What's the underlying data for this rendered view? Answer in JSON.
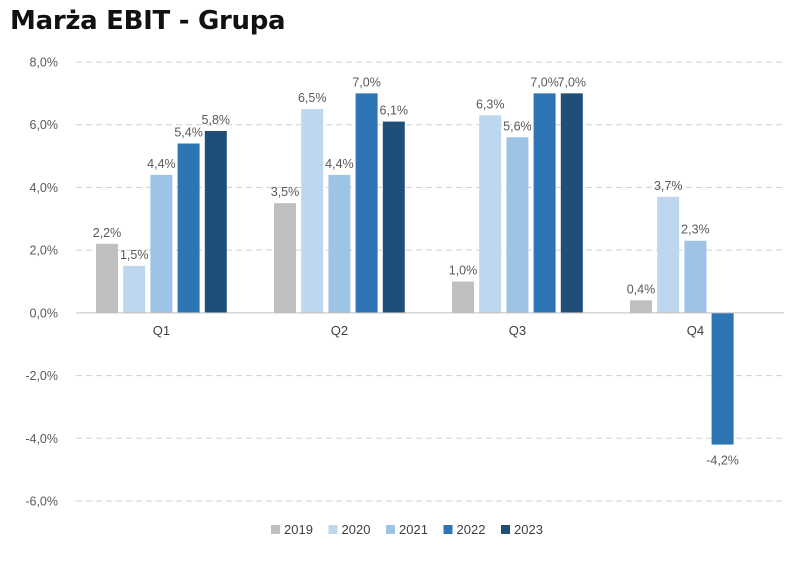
{
  "title": "Marża EBIT - Grupa",
  "chart_data": {
    "type": "bar",
    "title": "Marża EBIT - Grupa",
    "xlabel": "",
    "ylabel": "",
    "categories": [
      "Q1",
      "Q2",
      "Q3",
      "Q4"
    ],
    "ylim": [
      -6,
      8
    ],
    "yticks": [
      8,
      6,
      4,
      2,
      0,
      -2,
      -4,
      -6
    ],
    "ytick_labels": [
      "8,0%",
      "6,0%",
      "4,0%",
      "2,0%",
      "0,0%",
      "-2,0%",
      "-4,0%",
      "-6,0%"
    ],
    "grid": true,
    "legend_position": "bottom",
    "series": [
      {
        "name": "2019",
        "color": "#bfbfbf",
        "values": [
          2.2,
          3.5,
          1.0,
          0.4
        ],
        "labels": [
          "2,2%",
          "3,5%",
          "1,0%",
          "0,4%"
        ]
      },
      {
        "name": "2020",
        "color": "#bdd7ee",
        "values": [
          1.5,
          6.5,
          6.3,
          3.7
        ],
        "labels": [
          "1,5%",
          "6,5%",
          "6,3%",
          "3,7%"
        ]
      },
      {
        "name": "2021",
        "color": "#9dc3e6",
        "values": [
          4.4,
          4.4,
          5.6,
          2.3
        ],
        "labels": [
          "4,4%",
          "4,4%",
          "5,6%",
          "2,3%"
        ]
      },
      {
        "name": "2022",
        "color": "#2e75b6",
        "values": [
          5.4,
          7.0,
          7.0,
          -4.2
        ],
        "labels": [
          "5,4%",
          "7,0%",
          "7,0%",
          "-4,2%"
        ]
      },
      {
        "name": "2023",
        "color": "#1f4e79",
        "values": [
          5.8,
          6.1,
          7.0,
          null
        ],
        "labels": [
          "5,8%",
          "6,1%",
          "7,0%",
          null
        ]
      }
    ]
  }
}
